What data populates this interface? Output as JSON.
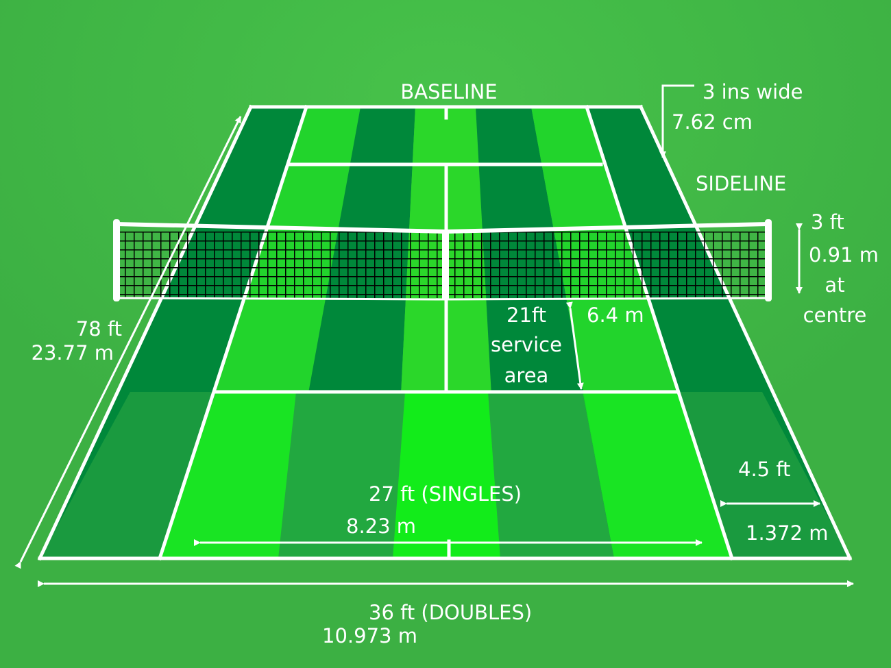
{
  "colors": {
    "background": "#3cb043",
    "line": "#ffffff",
    "stripe_dark": "#00883a",
    "stripe_mid": "#2aa840",
    "stripe_light": "#22d42c",
    "stripe_bright": "#12ee22",
    "net_mesh": "#000000"
  },
  "labels": {
    "baseline": "BASELINE",
    "line_width_imperial": "3 ins wide",
    "line_width_metric": "7.62 cm",
    "sideline": "SIDELINE",
    "net_height_imperial": "3 ft",
    "net_height_metric": "0.91 m",
    "net_height_note_1": "at",
    "net_height_note_2": "centre",
    "length_imperial": "78 ft",
    "length_metric": "23.77 m",
    "service_imperial": "21ft",
    "service_note_1": "service",
    "service_note_2": "area",
    "service_metric": "6.4 m",
    "alley_imperial": "4.5 ft",
    "alley_metric": "1.372 m",
    "singles_imperial": "27 ft (SINGLES)",
    "singles_metric": "8.23 m",
    "doubles_imperial": "36 ft (DOUBLES)",
    "doubles_metric": "10.973 m"
  }
}
